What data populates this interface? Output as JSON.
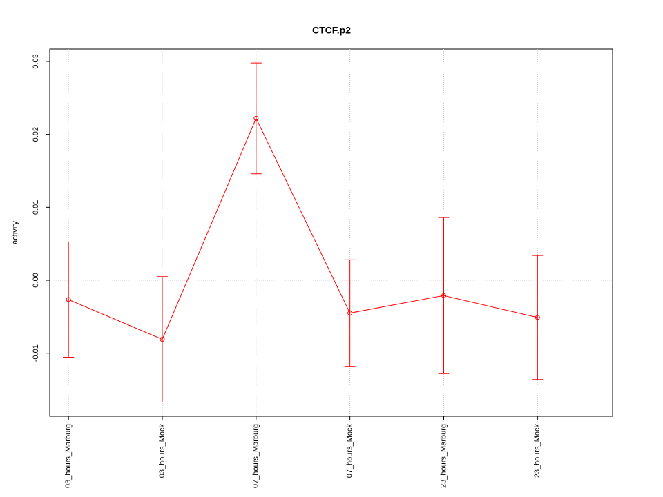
{
  "chart_data": {
    "type": "errorbar-line",
    "title": "CTCF.p2",
    "y_label": "activity",
    "categories": [
      "03_hours_Marburg",
      "03_hours_Mock",
      "07_hours_Marburg",
      "07_hours_Mock",
      "23_hours_Marburg",
      "23_hours_Mock"
    ],
    "values": [
      -0.00265,
      -0.0081,
      0.0222,
      -0.0045,
      -0.0021,
      -0.0051
    ],
    "errors": [
      0.0079,
      0.0086,
      0.0076,
      0.0073,
      0.0107,
      0.0085
    ],
    "color": "#ff0000",
    "ylim": [
      -0.01864,
      0.0317
    ],
    "yticks": [
      -0.01,
      {
        "value": 0,
        "label": "0.00"
      },
      0.01,
      0.02,
      0.03
    ],
    "reference_line": 0,
    "grid": true
  }
}
